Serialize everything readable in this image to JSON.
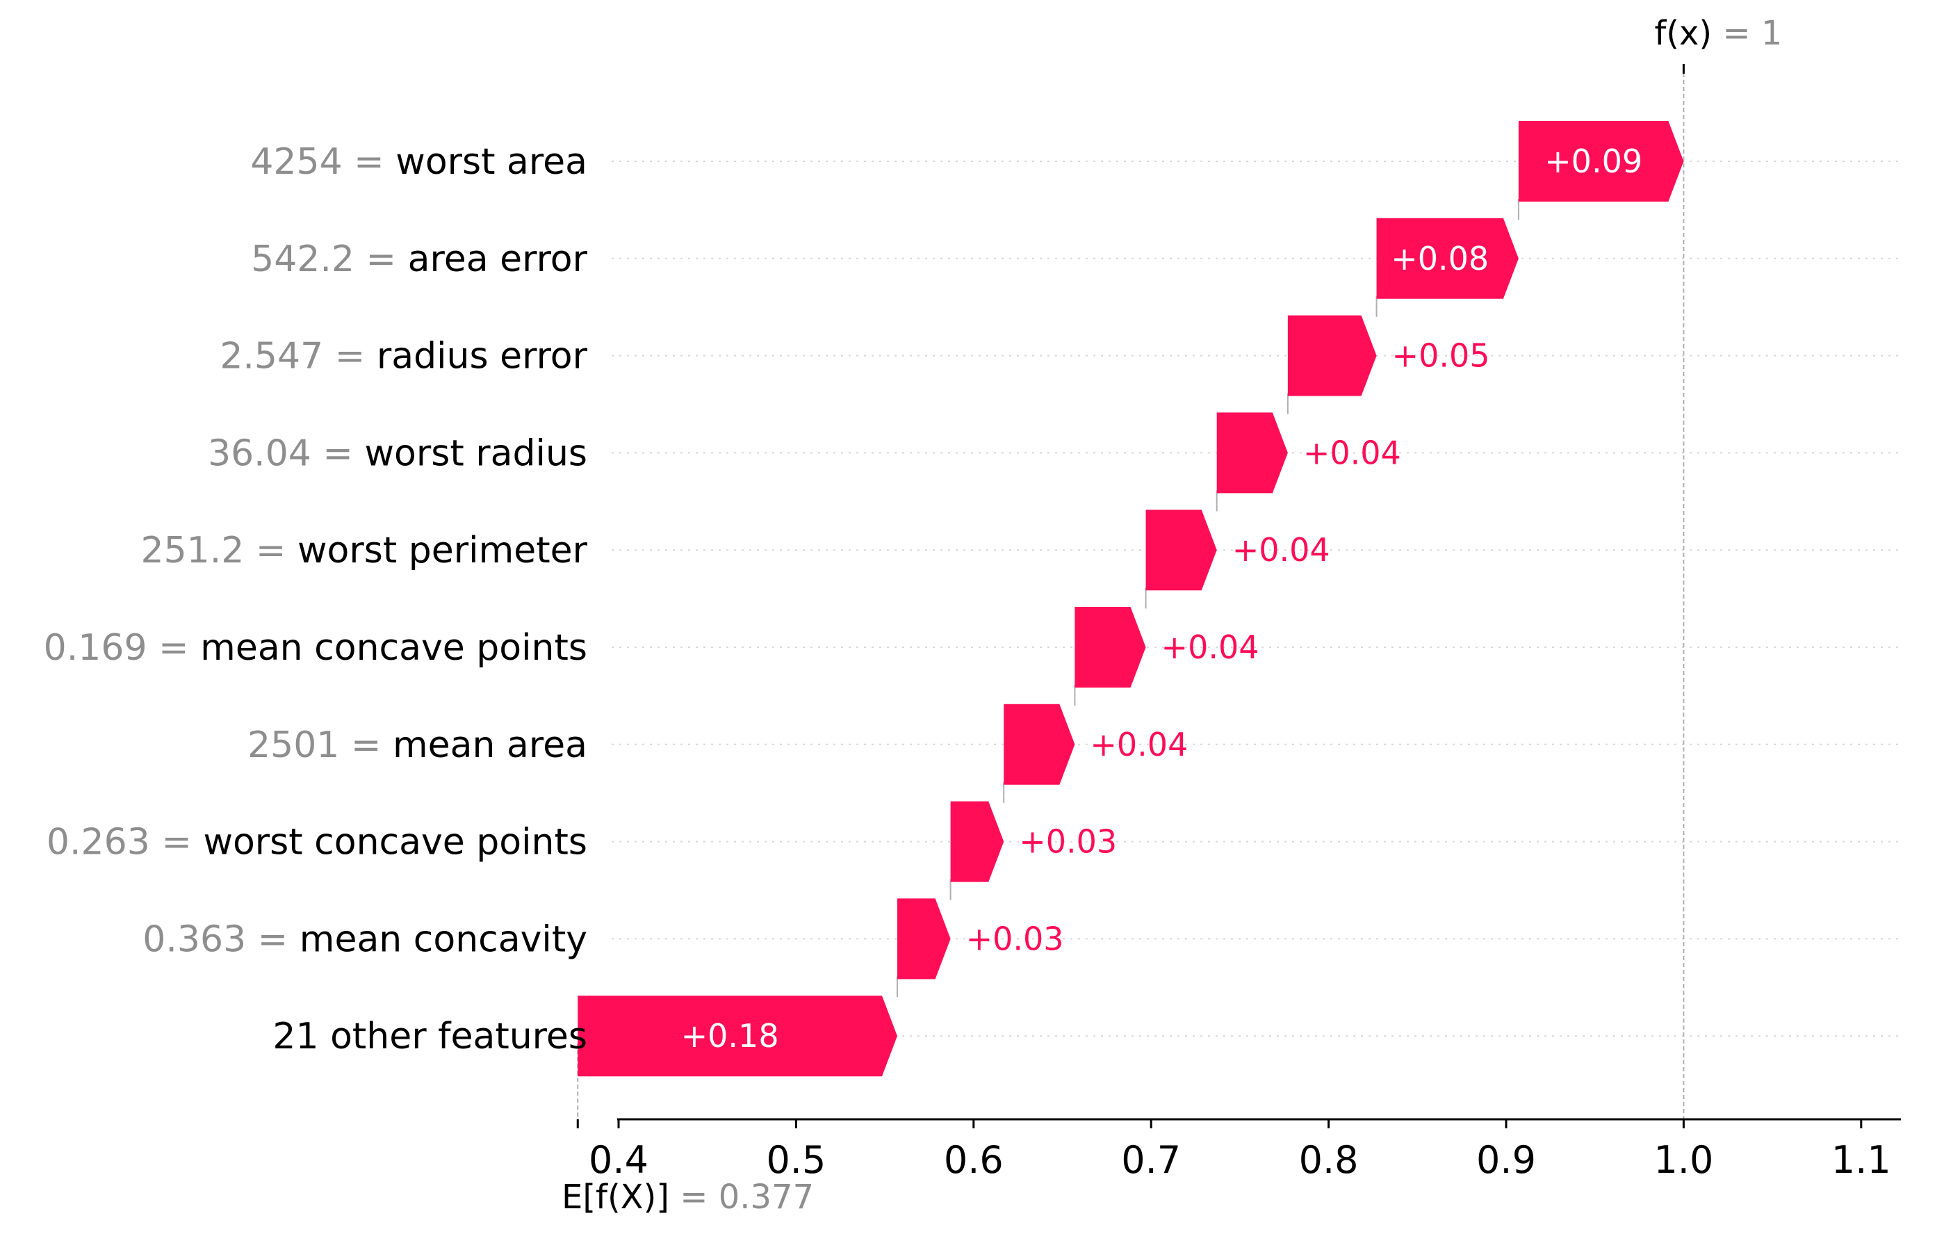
{
  "chart_data": {
    "type": "waterfall",
    "base_value": 0.377,
    "output_value": 1,
    "base_label_prefix": "E[f(X)]",
    "base_label_value": "= 0.377",
    "output_label_prefix": "f(x)",
    "output_label_value": "= 1",
    "xlim": [
      0.377,
      1.1
    ],
    "xticks": [
      "0.4",
      "0.5",
      "0.6",
      "0.7",
      "0.8",
      "0.9",
      "1.0",
      "1.1"
    ],
    "positive_color": "#ff0d57",
    "features": [
      {
        "value": "4254",
        "name": "worst area",
        "contribution": 0.09,
        "label": "+0.09"
      },
      {
        "value": "542.2",
        "name": "area error",
        "contribution": 0.08,
        "label": "+0.08"
      },
      {
        "value": "2.547",
        "name": "radius error",
        "contribution": 0.05,
        "label": "+0.05"
      },
      {
        "value": "36.04",
        "name": "worst radius",
        "contribution": 0.04,
        "label": "+0.04"
      },
      {
        "value": "251.2",
        "name": "worst perimeter",
        "contribution": 0.04,
        "label": "+0.04"
      },
      {
        "value": "0.169",
        "name": "mean concave points",
        "contribution": 0.04,
        "label": "+0.04"
      },
      {
        "value": "2501",
        "name": "mean area",
        "contribution": 0.04,
        "label": "+0.04"
      },
      {
        "value": "0.263",
        "name": "worst concave points",
        "contribution": 0.03,
        "label": "+0.03"
      },
      {
        "value": "0.363",
        "name": "mean concavity",
        "contribution": 0.03,
        "label": "+0.03"
      },
      {
        "value": "",
        "name": "21 other features",
        "contribution": 0.18,
        "label": "+0.18"
      }
    ]
  }
}
